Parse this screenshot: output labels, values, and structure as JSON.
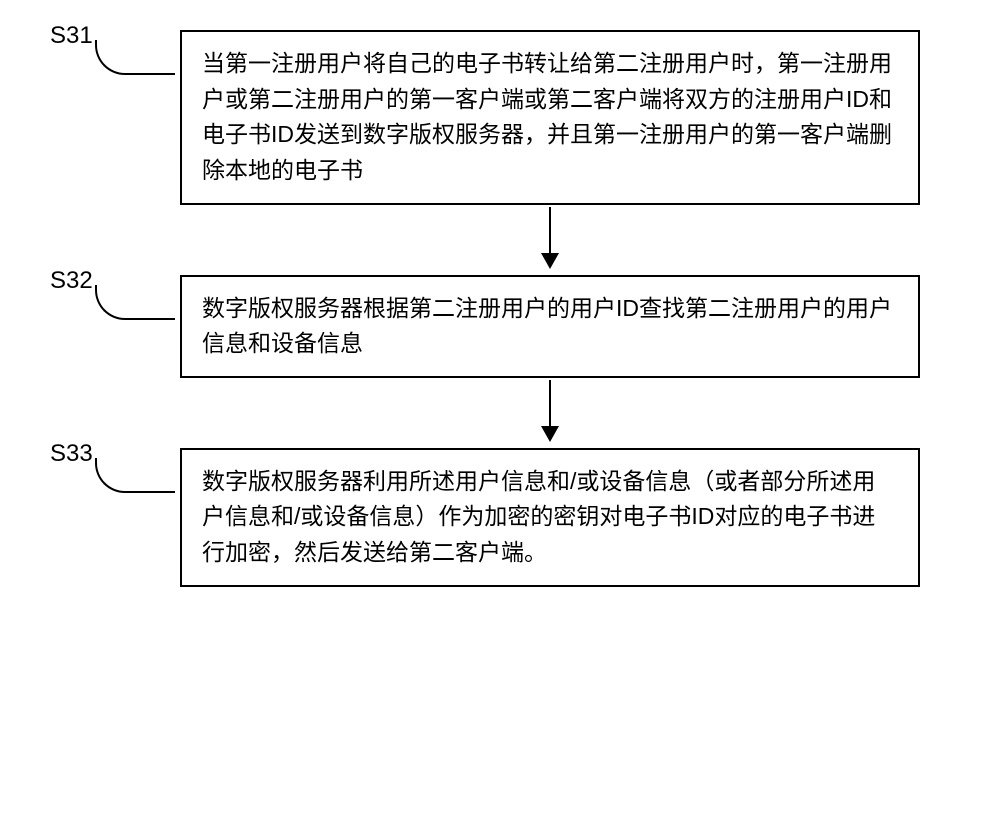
{
  "flowchart": {
    "type": "flowchart",
    "background_color": "#ffffff",
    "box_border_color": "#000000",
    "box_border_width": 2,
    "text_color": "#000000",
    "font_size": 23,
    "label_font_size": 24,
    "arrow_color": "#000000",
    "steps": [
      {
        "label": "S31",
        "text": "当第一注册用户将自己的电子书转让给第二注册用户时，第一注册用户或第二注册用户的第一客户端或第二客户端将双方的注册用户ID和电子书ID发送到数字版权服务器，并且第一注册用户的第一客户端删除本地的电子书"
      },
      {
        "label": "S32",
        "text": "数字版权服务器根据第二注册用户的用户ID查找第二注册用户的用户信息和设备信息"
      },
      {
        "label": "S33",
        "text": "数字版权服务器利用所述用户信息和/或设备信息（或者部分所述用户信息和/或设备信息）作为加密的密钥对电子书ID对应的电子书进行加密，然后发送给第二客户端。"
      }
    ]
  }
}
